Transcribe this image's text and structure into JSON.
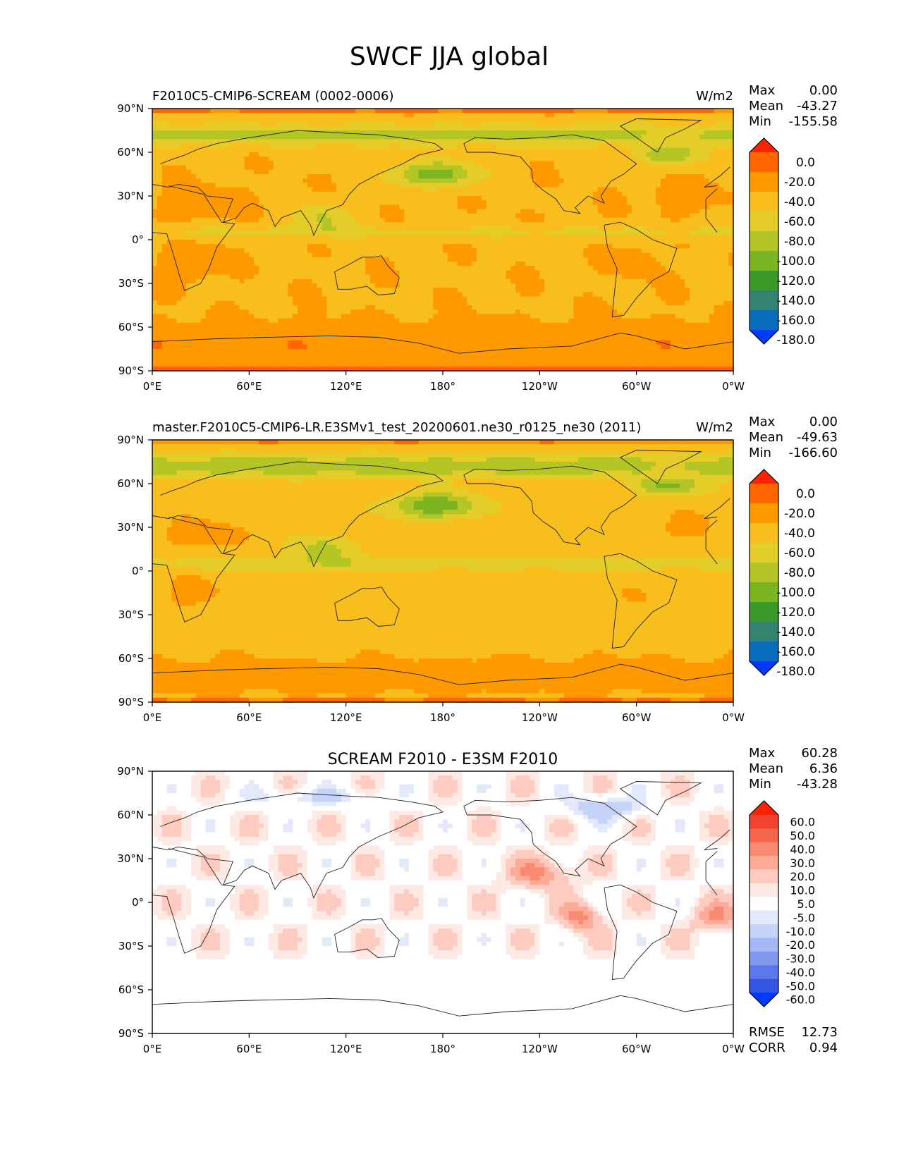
{
  "figure": {
    "title": "SWCF JJA global"
  },
  "chart_data": [
    {
      "type": "heatmap",
      "panel": "test",
      "title_left": "F2010C5-CMIP6-SCREAM (0002-0006)",
      "title_center": "",
      "units": "W/m2",
      "stats": {
        "max_label": "Max",
        "max": "0.00",
        "mean_label": "Mean",
        "mean": "-43.27",
        "min_label": "Min",
        "min": "-155.58"
      },
      "colorbar": {
        "levels": [
          "0.0",
          "-20.0",
          "-40.0",
          "-60.0",
          "-80.0",
          "-100.0",
          "-120.0",
          "-140.0",
          "-160.0",
          "-180.0"
        ],
        "colors": [
          "#ff2200",
          "#ff6600",
          "#ff9900",
          "#f7be1e",
          "#e4cd28",
          "#b3c625",
          "#7cb521",
          "#3a9a28",
          "#368270",
          "#0a6dbb",
          "#0039ff"
        ]
      },
      "x_ticks": [
        "0°E",
        "60°E",
        "120°E",
        "180°",
        "120°W",
        "60°W",
        "0°W"
      ],
      "y_ticks": [
        "90°N",
        "60°N",
        "30°N",
        "0°",
        "30°S",
        "60°S",
        "90°S"
      ],
      "xlim": [
        0,
        360
      ],
      "ylim": [
        -90,
        90
      ],
      "field_bias": 0
    },
    {
      "type": "heatmap",
      "panel": "reference",
      "title_left": "master.F2010C5-CMIP6-LR.E3SMv1_test_20200601.ne30_r0125_ne30 (2011)",
      "title_center": "",
      "units": "W/m2",
      "stats": {
        "max_label": "Max",
        "max": "0.00",
        "mean_label": "Mean",
        "mean": "-49.63",
        "min_label": "Min",
        "min": "-166.60"
      },
      "colorbar": {
        "levels": [
          "0.0",
          "-20.0",
          "-40.0",
          "-60.0",
          "-80.0",
          "-100.0",
          "-120.0",
          "-140.0",
          "-160.0",
          "-180.0"
        ],
        "colors": [
          "#ff2200",
          "#ff6600",
          "#ff9900",
          "#f7be1e",
          "#e4cd28",
          "#b3c625",
          "#7cb521",
          "#3a9a28",
          "#368270",
          "#0a6dbb",
          "#0039ff"
        ]
      },
      "x_ticks": [
        "0°E",
        "60°E",
        "120°E",
        "180°",
        "120°W",
        "60°W",
        "0°W"
      ],
      "y_ticks": [
        "90°N",
        "60°N",
        "30°N",
        "0°",
        "30°S",
        "60°S",
        "90°S"
      ],
      "xlim": [
        0,
        360
      ],
      "ylim": [
        -90,
        90
      ],
      "field_bias": -6
    },
    {
      "type": "heatmap",
      "panel": "difference",
      "title_left": "",
      "title_center": "SCREAM F2010 - E3SM F2010",
      "units": "",
      "stats": {
        "max_label": "Max",
        "max": "60.28",
        "mean_label": "Mean",
        "mean": "6.36",
        "min_label": "Min",
        "min": "-43.28"
      },
      "rmse_label": "RMSE",
      "rmse": "12.73",
      "corr_label": "CORR",
      "corr": "0.94",
      "colorbar": {
        "levels": [
          "60.0",
          "50.0",
          "40.0",
          "30.0",
          "20.0",
          "10.0",
          "5.0",
          "-5.0",
          "-10.0",
          "-20.0",
          "-30.0",
          "-40.0",
          "-50.0",
          "-60.0"
        ],
        "colors": [
          "#ff2200",
          "#f2432f",
          "#f5664c",
          "#f88a72",
          "#fbab98",
          "#fdcbc0",
          "#feeae4",
          "#ffffff",
          "#e3e9fb",
          "#c5d3f8",
          "#a4b8f4",
          "#8199ef",
          "#5d78ea",
          "#3556e5",
          "#0039ff"
        ]
      },
      "x_ticks": [
        "0°E",
        "60°E",
        "120°E",
        "180°",
        "120°W",
        "60°W",
        "0°W"
      ],
      "y_ticks": [
        "90°N",
        "60°N",
        "30°N",
        "0°",
        "30°S",
        "60°S",
        "90°S"
      ],
      "xlim": [
        0,
        360
      ],
      "ylim": [
        -90,
        90
      ]
    }
  ]
}
